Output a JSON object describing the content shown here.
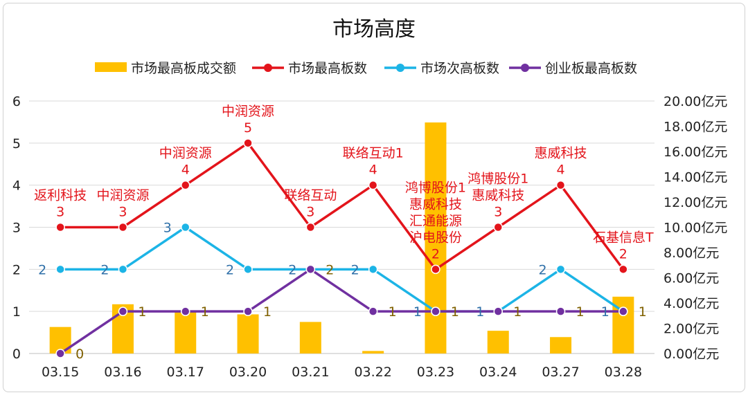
{
  "chart_data": {
    "type": "bar+line",
    "title": "市场高度",
    "categories": [
      "03.15",
      "03.16",
      "03.17",
      "03.20",
      "03.21",
      "03.22",
      "03.23",
      "03.24",
      "03.27",
      "03.28"
    ],
    "y_left": {
      "min": 0,
      "max": 6,
      "ticks": [
        "0",
        "1",
        "2",
        "3",
        "4",
        "5",
        "6"
      ]
    },
    "y_right": {
      "min": 0,
      "max": 20,
      "ticks": [
        "0.00亿元",
        "2.00亿元",
        "4.00亿元",
        "6.00亿元",
        "8.00亿元",
        "10.00亿元",
        "12.00亿元",
        "14.00亿元",
        "16.00亿元",
        "18.00亿元",
        "20.00亿元"
      ]
    },
    "grid": true,
    "legend_position": "top",
    "bar_series": {
      "name": "市场最高板成交额",
      "axis": "right",
      "color": "#FFC000",
      "values": [
        2.1,
        3.9,
        3.3,
        3.1,
        2.5,
        0.2,
        18.3,
        1.8,
        1.3,
        4.5
      ]
    },
    "line_series": [
      {
        "name": "市场最高板数",
        "color": "#E3141B",
        "values": [
          3,
          3,
          4,
          5,
          3,
          4,
          2,
          3,
          4,
          2
        ],
        "stock_labels": [
          "返利科技",
          "中润资源",
          "中润资源",
          "中润资源",
          "联络互动",
          "联络互动1",
          "鸿博股份1\n惠威科技\n汇通能源\n沪电股份",
          "鸿博股份1\n惠威科技",
          "惠威科技",
          "石基信息T"
        ],
        "value_labels": [
          "3",
          "3",
          "4",
          "5",
          "3",
          "4",
          "2",
          "3",
          "4",
          "2"
        ]
      },
      {
        "name": "市场次高板数",
        "color": "#1CB4E6",
        "values": [
          2,
          2,
          3,
          2,
          2,
          2,
          1,
          1,
          2,
          1
        ],
        "value_labels": [
          "2",
          "2",
          "3",
          "2",
          "2",
          "2",
          "1",
          "1",
          "2",
          "1"
        ]
      },
      {
        "name": "创业板最高板数",
        "color": "#7030A0",
        "values": [
          0,
          1,
          1,
          1,
          2,
          1,
          1,
          1,
          1,
          1
        ],
        "value_labels": [
          "0",
          "1",
          "1",
          "1",
          "2",
          "1",
          "1",
          "1",
          "1",
          "1"
        ]
      }
    ],
    "label_colors": {
      "secondary": "#2E6FA8",
      "purple": "#7F6000"
    }
  }
}
